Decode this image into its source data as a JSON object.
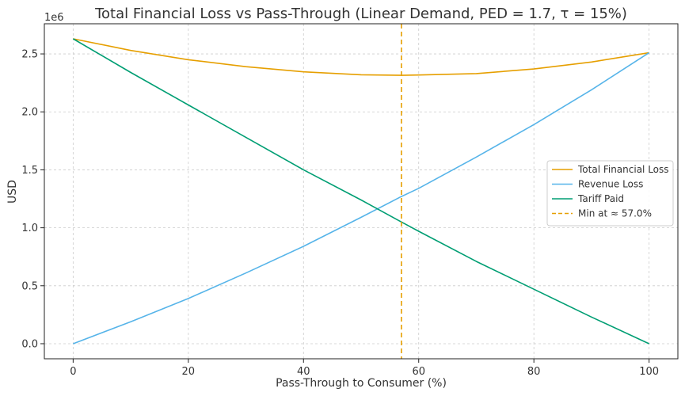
{
  "chart_data": {
    "type": "line",
    "title": "Total Financial Loss vs Pass-Through (Linear Demand, PED = 1.7, τ = 15%)",
    "xlabel": "Pass-Through to Consumer (%)",
    "ylabel": "USD",
    "offset_label": "1e6",
    "xlim": [
      -5,
      105
    ],
    "ylim": [
      -0.13,
      2.76
    ],
    "x_ticks": [
      0,
      20,
      40,
      60,
      80,
      100
    ],
    "x_tick_labels": [
      "0",
      "20",
      "40",
      "60",
      "80",
      "100"
    ],
    "y_ticks": [
      0,
      0.5,
      1.0,
      1.5,
      2.0,
      2.5
    ],
    "y_tick_labels": [
      "0.0",
      "0.5",
      "1.0",
      "1.5",
      "2.0",
      "2.5"
    ],
    "grid": true,
    "legend_position": "center-right",
    "x": [
      0,
      10,
      20,
      30,
      40,
      50,
      57,
      60,
      70,
      80,
      90,
      100
    ],
    "series": [
      {
        "name": "Total Financial Loss",
        "color": "#E69F00",
        "style": "solid",
        "values": [
          2.63,
          2.53,
          2.45,
          2.39,
          2.345,
          2.32,
          2.315,
          2.318,
          2.33,
          2.37,
          2.43,
          2.51
        ]
      },
      {
        "name": "Revenue Loss",
        "color": "#56B4E9",
        "style": "solid",
        "values": [
          0.0,
          0.19,
          0.39,
          0.61,
          0.84,
          1.09,
          1.27,
          1.34,
          1.61,
          1.89,
          2.19,
          2.51
        ]
      },
      {
        "name": "Tariff Paid",
        "color": "#009E73",
        "style": "solid",
        "values": [
          2.63,
          2.34,
          2.06,
          1.78,
          1.5,
          1.24,
          1.05,
          0.97,
          0.71,
          0.47,
          0.23,
          0.0
        ]
      }
    ],
    "vline": {
      "name": "Min at ≈ 57.0%",
      "x": 57,
      "color": "#E69F00",
      "style": "dashed"
    }
  }
}
